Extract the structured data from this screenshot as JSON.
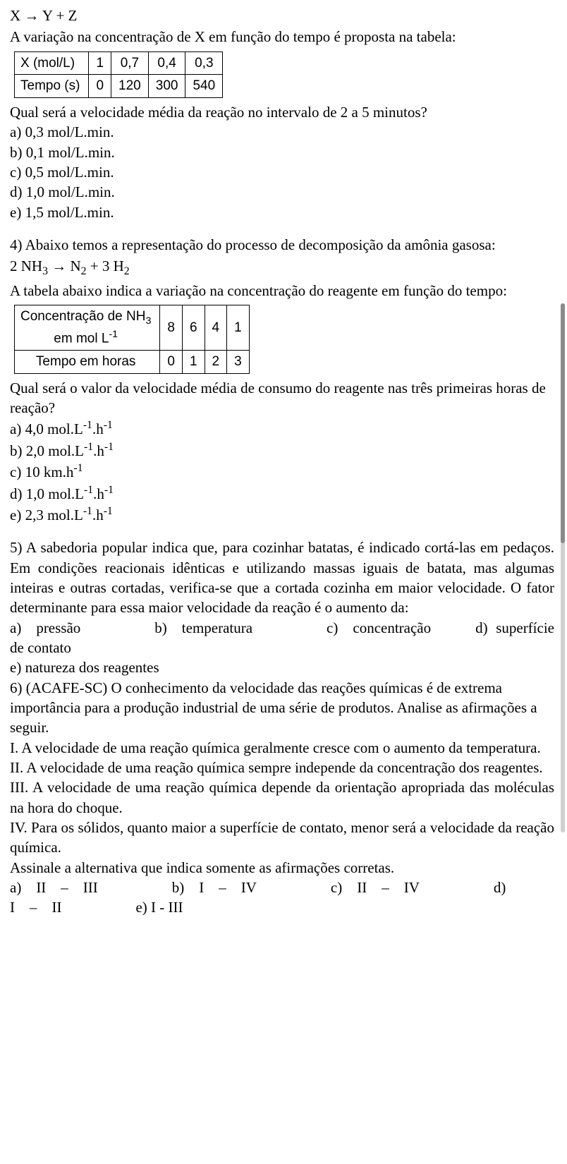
{
  "colors": {
    "text": "#000000",
    "background": "#ffffff",
    "table_border": "#000000",
    "scrollbar_track": "#cfcfcf",
    "scrollbar_thumb": "#8a8a8a"
  },
  "typography": {
    "body_font": "Times New Roman",
    "body_size_pt": 16,
    "table_font": "Arial",
    "table_size_pt": 14
  },
  "q3": {
    "equation": "X → Y + Z",
    "intro": "A variação na concentração de X em função do tempo é proposta na tabela:",
    "table": {
      "row1_label": "X (mol/L)",
      "row1_values": [
        "1",
        "0,7",
        "0,4",
        "0,3"
      ],
      "row2_label": "Tempo (s)",
      "row2_values": [
        "0",
        "120",
        "300",
        "540"
      ]
    },
    "question": "Qual será a velocidade média da reação no intervalo de 2 a 5 minutos?",
    "options": {
      "a": "a) 0,3 mol/L.min.",
      "b": "b) 0,1 mol/L.min.",
      "c": "c) 0,5 mol/L.min.",
      "d": "d) 1,0 mol/L.min.",
      "e": "e) 1,5 mol/L.min."
    }
  },
  "q4": {
    "heading": "4) Abaixo temos a representação do processo de decomposição da amônia gasosa:",
    "equation_pre": "2 NH",
    "equation_sub1": "3",
    "equation_mid": " → N",
    "equation_sub2": "2",
    "equation_mid2": " + 3 H",
    "equation_sub3": "2",
    "intro": "A tabela abaixo indica a variação na concentração do reagente em função do tempo:",
    "table": {
      "row1_label_pre": "Concentração de NH",
      "row1_label_sub": "3",
      "row1_label_line2_pre": "em mol L",
      "row1_label_line2_sup": "-1",
      "row1_values": [
        "8",
        "6",
        "4",
        "1"
      ],
      "row2_label": "Tempo em horas",
      "row2_values": [
        "0",
        "1",
        "2",
        "3"
      ]
    },
    "question": "Qual será o valor da velocidade média de consumo do reagente nas três primeiras horas de reação?",
    "options": {
      "a_pre": "a) 4,0 mol.L",
      "a_sup1": "-1",
      "a_mid": ".h",
      "a_sup2": "-1",
      "b_pre": "b) 2,0 mol.L",
      "b_sup1": "-1",
      "b_mid": ".h",
      "b_sup2": "-1",
      "c_pre": "c) 10 km.h",
      "c_sup1": "-1",
      "d_pre": "d) 1,0 mol.L",
      "d_sup1": "-1",
      "d_mid": ".h",
      "d_sup2": "-1",
      "e_pre": "e) 2,3 mol.L",
      "e_sup1": "-1",
      "e_mid": ".h",
      "e_sup2": "-1"
    }
  },
  "q5": {
    "text": "5) A sabedoria popular indica que, para cozinhar batatas, é indicado cortá-las em pedaços. Em condições reacionais idênticas e utilizando massas iguais de batata, mas algumas inteiras e outras cortadas, verifica-se que a cortada cozinha em maior velocidade. O fator determinante para essa maior velocidade da reação é o aumento da:",
    "opts_line1": "a) pressão     b) temperatura     c) concentração   d) superfície de contato",
    "opts_line2": "e) natureza dos reagentes"
  },
  "q6": {
    "heading": "6) (ACAFE-SC) O conhecimento da velocidade das reações químicas é de extrema importância para a produção industrial de uma série de produtos. Analise as afirmações a seguir.",
    "i": "I. A velocidade de uma reação química geralmente cresce com o aumento da temperatura.",
    "ii": "II. A velocidade de uma reação química sempre independe da concentração dos reagentes.",
    "iii": "III. A velocidade de uma reação química depende da orientação apropriada das moléculas na hora do choque.",
    "iv": "IV. Para os sólidos, quanto maior a superfície de contato, menor será a velocidade da reação química.",
    "prompt": "Assinale a alternativa que indica somente as afirmações corretas.",
    "opts": "a) II – III     b) I – IV     c) II – IV     d) I – II     e) I - III"
  }
}
